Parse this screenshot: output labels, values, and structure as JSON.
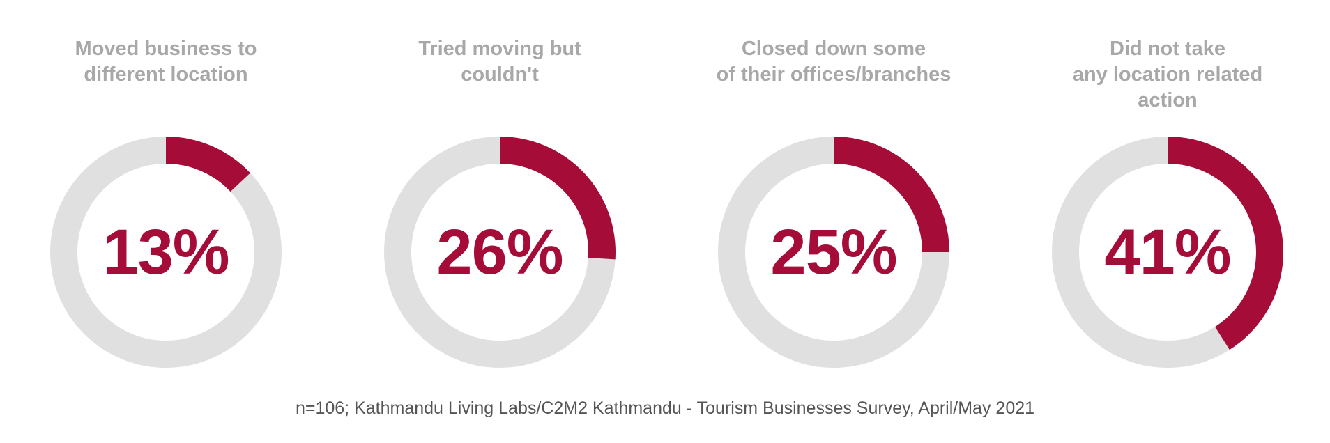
{
  "chart_data": {
    "type": "pie",
    "variant": "donut",
    "panels": [
      {
        "title": "Moved business to\ndifferent location",
        "value": 13,
        "label": "13%"
      },
      {
        "title": "Tried moving but\ncouldn't",
        "value": 26,
        "label": "26%"
      },
      {
        "title": "Closed down some\nof their offices/branches",
        "value": 25,
        "label": "25%"
      },
      {
        "title": "Did not take\nany location related\naction",
        "value": 41,
        "label": "41%"
      }
    ],
    "max": 100,
    "colors": {
      "filled": "#a50d38",
      "track": "#e0e0e0",
      "title": "#a8a8a8",
      "value_text": "#a50d38"
    }
  },
  "source_note": "n=106; Kathmandu Living Labs/C2M2 Kathmandu - Tourism Businesses Survey, April/May 2021"
}
